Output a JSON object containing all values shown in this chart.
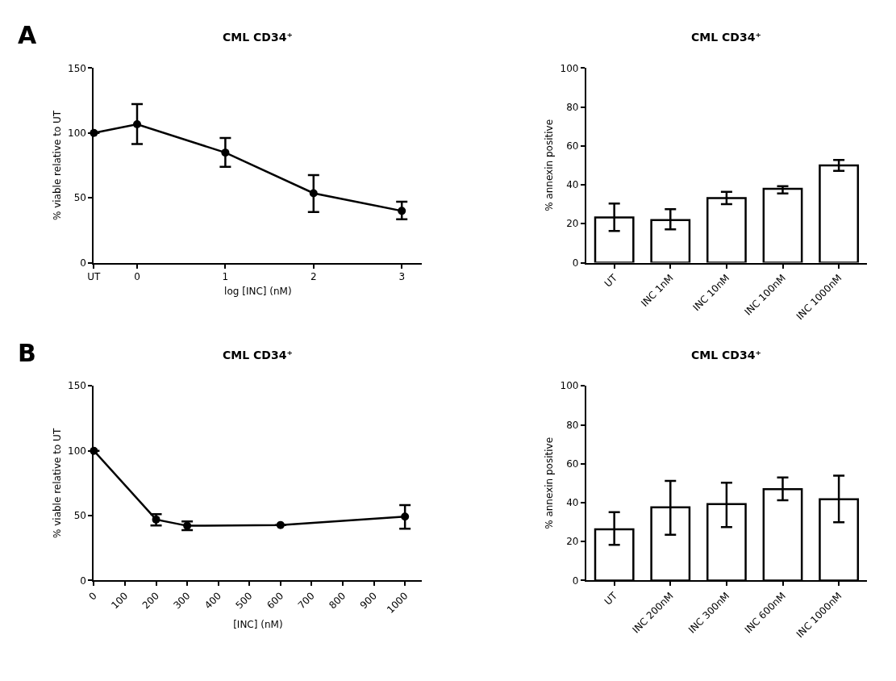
{
  "chart_data": [
    {
      "type": "line",
      "title": "CML CD34⁺",
      "xlabel": "log [INC] (nM)",
      "ylabel": "% viable relative to UT",
      "annotations": [
        "A"
      ],
      "x": [
        -0.49,
        0,
        1,
        2,
        3
      ],
      "xlim": [
        -0.49,
        3.23
      ],
      "xticks": [
        {
          "value": -0.49,
          "label": "UT"
        },
        0,
        1,
        2,
        3
      ],
      "ylim": [
        0,
        150
      ],
      "yticks": [
        0,
        50,
        100,
        150
      ],
      "series": [
        {
          "color": "#000000",
          "values": [
            100,
            106.7,
            84.8,
            53.5,
            39.9
          ],
          "errors": [
            null,
            [
              91.5,
              122.2
            ],
            [
              73.9,
              96.1
            ],
            [
              39.1,
              67.5
            ],
            [
              33.4,
              47.0
            ]
          ]
        }
      ],
      "marker": "circle",
      "line_style": "solid"
    },
    {
      "type": "bar",
      "title": "CML CD34⁺",
      "ylabel": "% annexin positive",
      "categories": [
        "UT",
        "INC 1nM",
        "INC 10nM",
        "INC 100nM",
        "INC 1000nM"
      ],
      "ylim": [
        0,
        100
      ],
      "yticks": [
        0,
        20,
        40,
        60,
        80,
        100
      ],
      "series": [
        {
          "color": "#ffffff",
          "values": [
            23.2,
            21.9,
            33.2,
            37.9,
            50.0
          ],
          "errors": [
            [
              16.3,
              30.4
            ],
            [
              17.1,
              27.5
            ],
            [
              30.1,
              36.4
            ],
            [
              35.6,
              39.3
            ],
            [
              47.2,
              52.8
            ]
          ]
        }
      ]
    },
    {
      "type": "line",
      "title": "CML CD34⁺",
      "xlabel": "[INC] (nM)",
      "ylabel": "% viable relative to UT",
      "annotations": [
        "B"
      ],
      "x": [
        0,
        200,
        300,
        600,
        1000
      ],
      "xlim": [
        0,
        1055
      ],
      "xticks": [
        0,
        100,
        200,
        300,
        400,
        500,
        600,
        700,
        800,
        900,
        1000
      ],
      "ylim": [
        0,
        150
      ],
      "yticks": [
        0,
        50,
        100,
        150
      ],
      "series": [
        {
          "color": "#000000",
          "values": [
            100,
            47.0,
            42.2,
            42.8,
            49.3
          ],
          "errors": [
            null,
            [
              42.4,
              51.2
            ],
            [
              38.9,
              45.5
            ],
            null,
            [
              39.9,
              58.1
            ]
          ]
        }
      ],
      "marker": "circle",
      "line_style": "solid"
    },
    {
      "type": "bar",
      "title": "CML CD34⁺",
      "ylabel": "% annexin positive",
      "categories": [
        "UT",
        "INC 200nM",
        "INC 300nM",
        "INC 600nM",
        "INC 1000nM"
      ],
      "ylim": [
        0,
        100
      ],
      "yticks": [
        0,
        20,
        40,
        60,
        80,
        100
      ],
      "series": [
        {
          "color": "#ffffff",
          "values": [
            26.3,
            37.6,
            39.3,
            46.9,
            41.8
          ],
          "errors": [
            [
              18.3,
              35.1
            ],
            [
              23.5,
              51.2
            ],
            [
              27.5,
              50.3
            ],
            [
              41.2,
              53.0
            ],
            [
              29.9,
              53.9
            ]
          ]
        }
      ]
    }
  ]
}
